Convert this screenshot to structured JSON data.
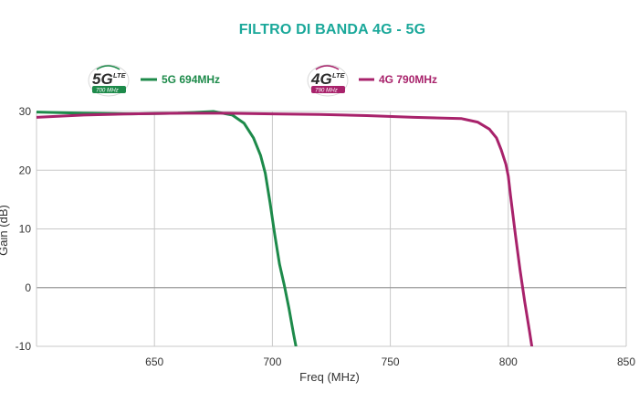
{
  "chart_data": {
    "type": "line",
    "title": "FILTRO DI BANDA 4G - 5G",
    "xlabel": "Freq (MHz)",
    "ylabel": "Gain (dB)",
    "xlim": [
      600,
      850
    ],
    "ylim": [
      -10,
      30
    ],
    "xticks": [
      650,
      700,
      750,
      800,
      850
    ],
    "yticks": [
      30,
      20,
      10,
      0,
      -10
    ],
    "grid": true,
    "legend_position": "top-left",
    "series": [
      {
        "name": "5G 694MHz",
        "badge": {
          "big": "5G",
          "small": "LTE",
          "band": "700 MHz"
        },
        "color": "#1d8a4a",
        "x": [
          600,
          620,
          640,
          660,
          675,
          683,
          688,
          692,
          695,
          697,
          699,
          701,
          703,
          705,
          707,
          709,
          710
        ],
        "y": [
          29.9,
          29.7,
          29.6,
          29.7,
          30.0,
          29.4,
          28.0,
          25.5,
          22.5,
          19.5,
          14.5,
          9.0,
          4.0,
          0.5,
          -3.5,
          -8.0,
          -10.0
        ]
      },
      {
        "name": "4G 790MHz",
        "badge": {
          "big": "4G",
          "small": "LTE",
          "band": "790 MHz"
        },
        "color": "#a8226b",
        "x": [
          600,
          620,
          640,
          660,
          680,
          700,
          720,
          740,
          760,
          780,
          787,
          792,
          795,
          797,
          799,
          800,
          801,
          803,
          805,
          807,
          809,
          810
        ],
        "y": [
          29.0,
          29.4,
          29.6,
          29.7,
          29.7,
          29.6,
          29.5,
          29.3,
          29.0,
          28.8,
          28.2,
          27.0,
          25.5,
          23.5,
          21.0,
          19.0,
          15.5,
          9.0,
          3.0,
          -2.5,
          -7.5,
          -10.0
        ]
      }
    ]
  },
  "colors": {
    "title": "#1aa89a",
    "grid": "#c8c8c8",
    "zero_line": "#999999",
    "badge_5g_band": "#1d8a4a",
    "badge_4g_band": "#a8226b"
  }
}
